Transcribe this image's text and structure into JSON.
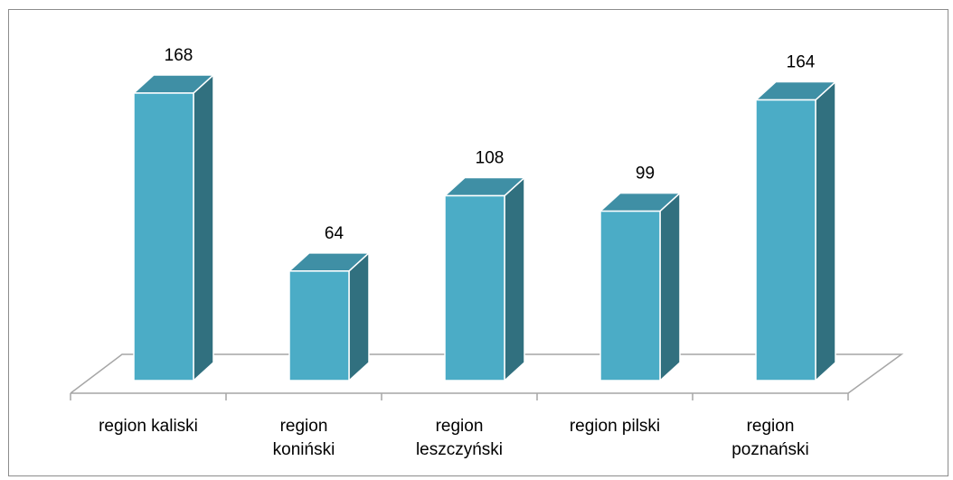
{
  "chart_data": {
    "type": "bar",
    "style": "3d-column",
    "title": "",
    "xlabel": "",
    "ylabel": "",
    "categories": [
      [
        "region kaliski"
      ],
      [
        "region",
        "koniński"
      ],
      [
        "region",
        "leszczyński"
      ],
      [
        "region pilski"
      ],
      [
        "region",
        "poznański"
      ]
    ],
    "values": [
      168,
      64,
      108,
      99,
      164
    ],
    "data_labels": [
      "168",
      "64",
      "108",
      "99",
      "164"
    ],
    "ylim": [
      0,
      180
    ],
    "grid": false,
    "legend": "none",
    "colors": {
      "bar_front": "#4bacc6",
      "bar_side": "#31707f",
      "bar_top": "#3f8fa5",
      "bar_edge": "#ffffff",
      "floor_line": "#a6a6a6",
      "frame": "#8c8c8c"
    }
  }
}
